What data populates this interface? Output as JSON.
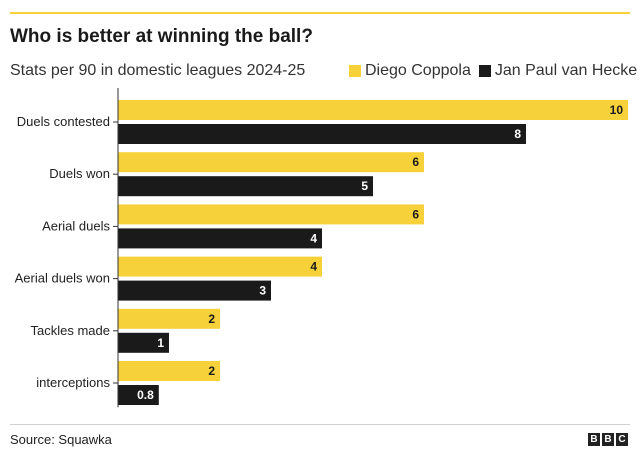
{
  "title": "Who is better at winning the ball?",
  "subtitle": "Stats per 90 in domestic leagues 2024-25",
  "source": "Source: Squawka",
  "logo": {
    "letters": [
      "B",
      "B",
      "C"
    ]
  },
  "colors": {
    "accent": "#f6d13a",
    "series_1": "#f6d13a",
    "series_2": "#1a1a1a"
  },
  "chart_data": {
    "type": "bar",
    "orientation": "horizontal",
    "categories": [
      "Duels contested",
      "Duels won",
      "Aerial duels",
      "Aerial duels won",
      "Tackles made",
      "interceptions"
    ],
    "series": [
      {
        "name": "Diego Coppola",
        "values": [
          10,
          6,
          6,
          4,
          2,
          2
        ],
        "labels": [
          "10",
          "6",
          "6",
          "4",
          "2",
          "2"
        ]
      },
      {
        "name": "Jan Paul van Hecke",
        "values": [
          8,
          5,
          4,
          3,
          1,
          0.8
        ],
        "labels": [
          "8",
          "5",
          "4",
          "3",
          "1",
          "0.8"
        ]
      }
    ],
    "xlim": [
      0,
      10
    ],
    "grid": false,
    "legend": "top"
  }
}
